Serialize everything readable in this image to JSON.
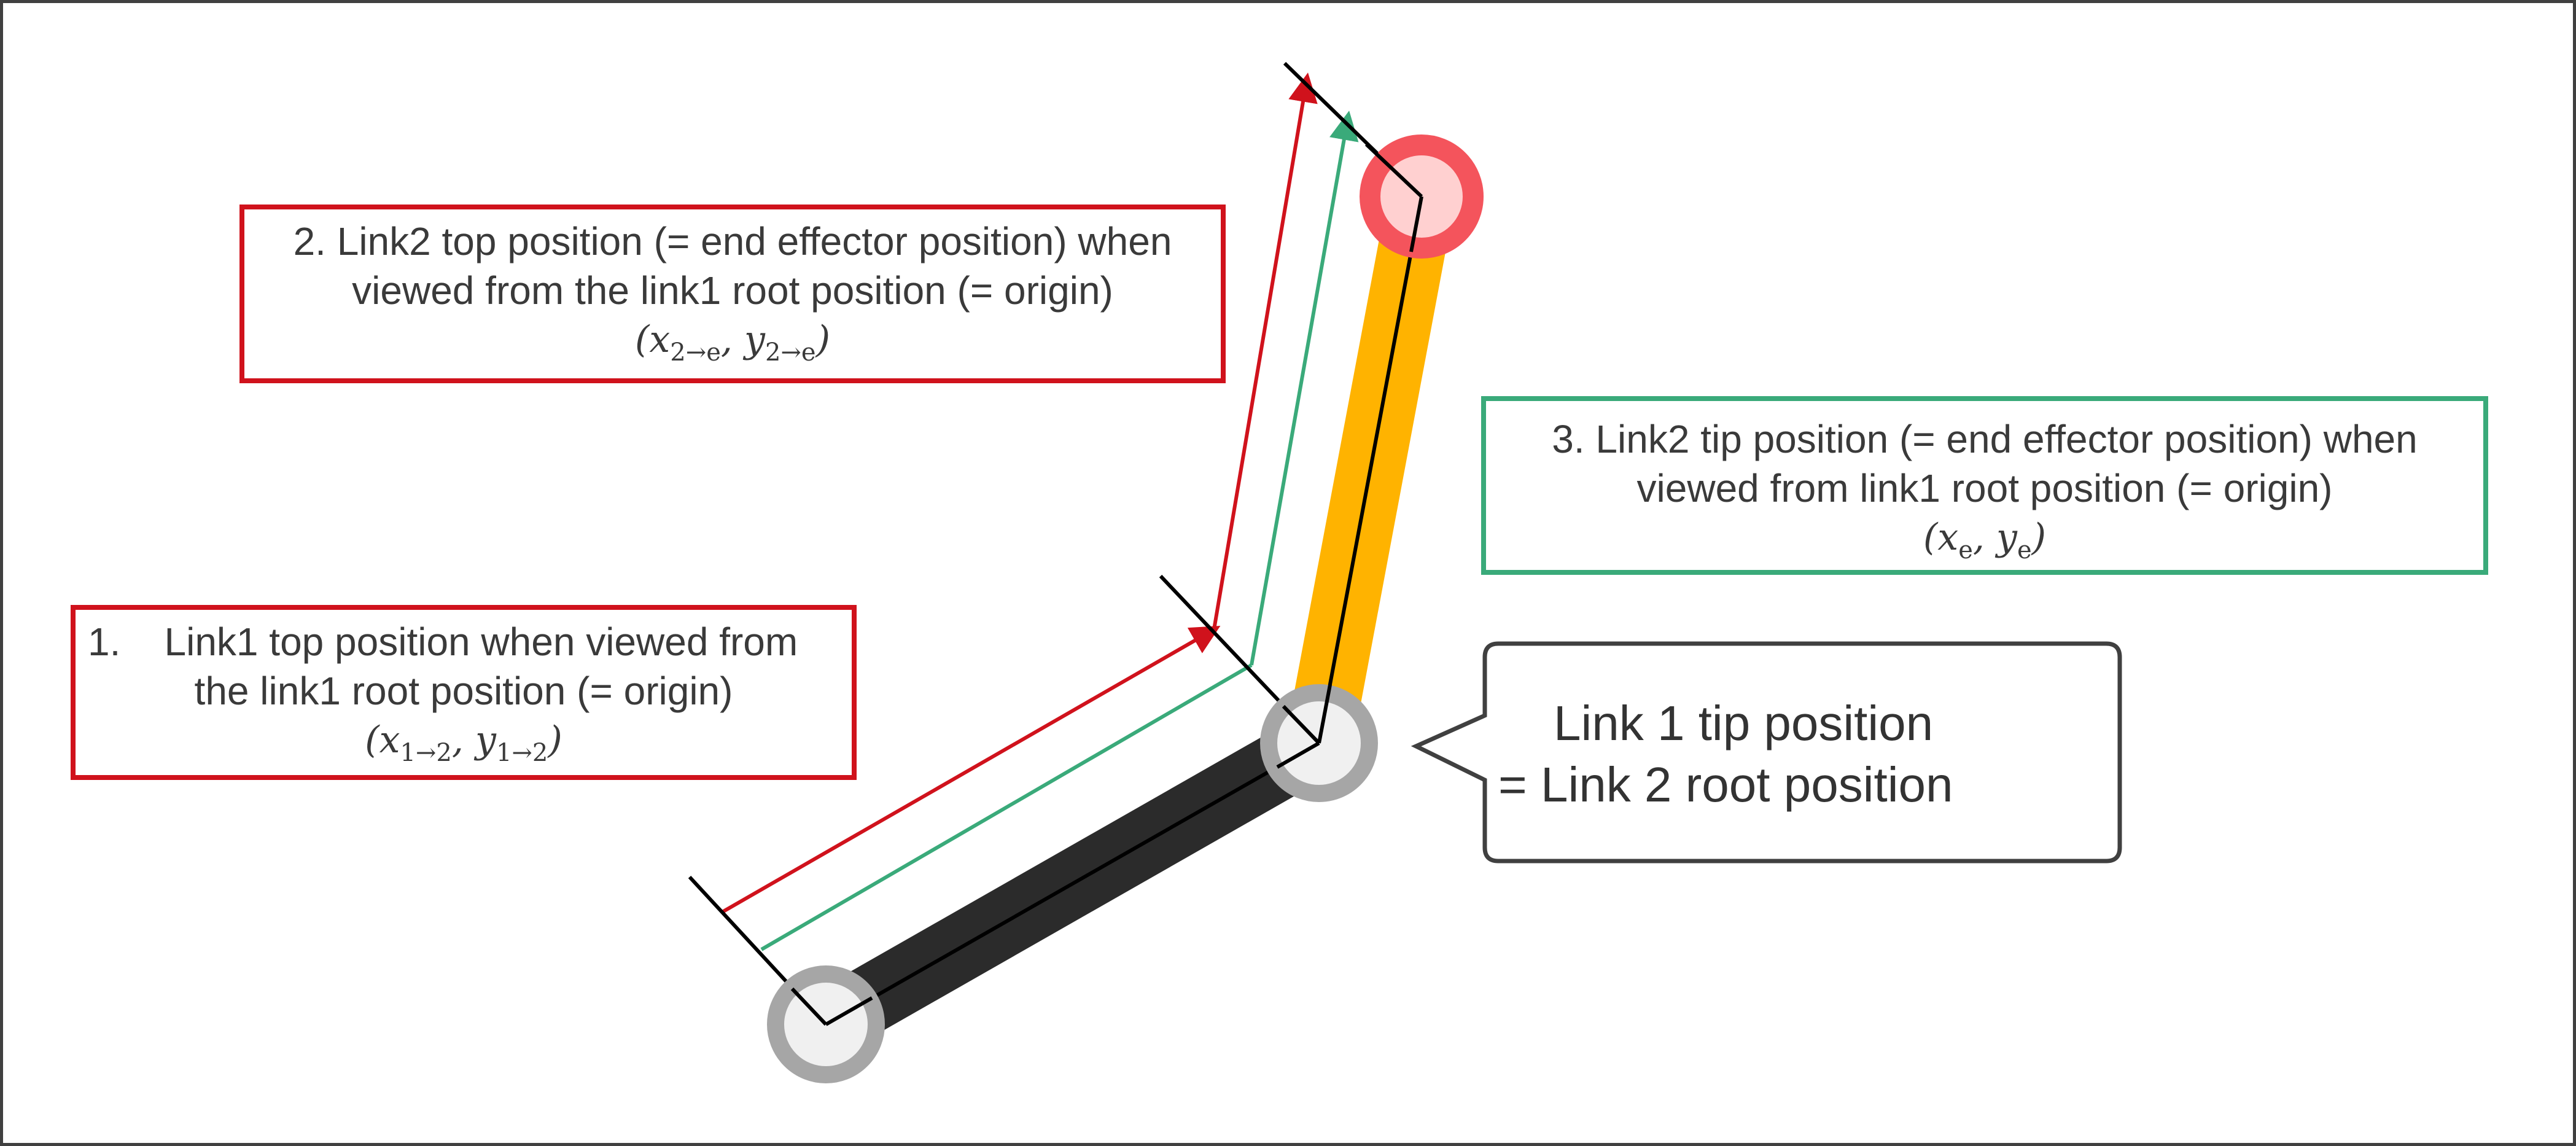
{
  "labels": {
    "box1": {
      "number": "1.",
      "line1": "Link1 top position when viewed from",
      "line2": "the link1 root position (= origin)",
      "math_x": "x",
      "math_x_sub": "1→2",
      "math_y": "y",
      "math_y_sub": "1→2"
    },
    "box2": {
      "line1": "2. Link2 top position (= end effector position) when",
      "line2": "viewed from the link1 root position (= origin)",
      "math_x": "x",
      "math_x_sub": "2→e",
      "math_y": "y",
      "math_y_sub": "2→e"
    },
    "box3": {
      "line1": "3. Link2 tip position (= end effector position) when",
      "line2": "viewed from link1 root position (= origin)",
      "math_x": "x",
      "math_x_sub": "e",
      "math_y": "y",
      "math_y_sub": "e"
    },
    "callout": {
      "line1": "Link 1 tip position",
      "line2": "= Link 2 root position"
    }
  },
  "colors": {
    "link1": "#2b2b2b",
    "link2": "#ffb300",
    "joint": "#a6a6a6",
    "joint_fill": "#f0f0f0",
    "end_effector": "#f4545c",
    "end_effector_fill": "#ffd0d0",
    "vector_red": "#d0121c",
    "vector_green": "#3aaa7a",
    "frame": "#404040"
  }
}
